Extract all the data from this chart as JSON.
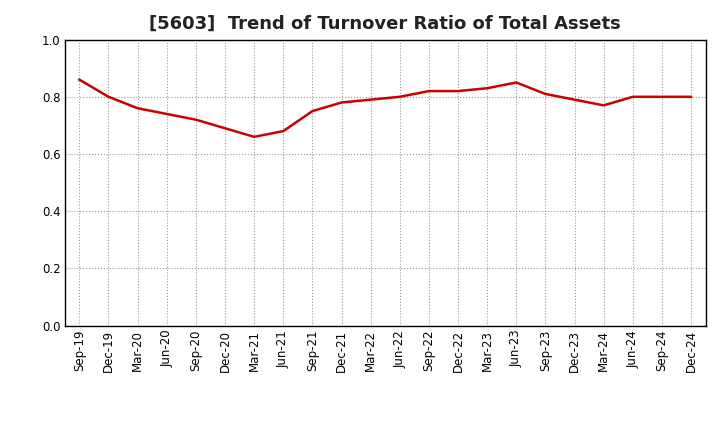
{
  "title": "[5603]  Trend of Turnover Ratio of Total Assets",
  "x_labels": [
    "Sep-19",
    "Dec-19",
    "Mar-20",
    "Jun-20",
    "Sep-20",
    "Dec-20",
    "Mar-21",
    "Jun-21",
    "Sep-21",
    "Dec-21",
    "Mar-22",
    "Jun-22",
    "Sep-22",
    "Dec-22",
    "Mar-23",
    "Jun-23",
    "Sep-23",
    "Dec-23",
    "Mar-24",
    "Jun-24",
    "Sep-24",
    "Dec-24"
  ],
  "y_values": [
    0.86,
    0.8,
    0.76,
    0.74,
    0.72,
    0.69,
    0.66,
    0.68,
    0.75,
    0.78,
    0.79,
    0.8,
    0.82,
    0.82,
    0.83,
    0.85,
    0.81,
    0.79,
    0.77,
    0.8,
    0.8,
    0.8
  ],
  "line_color": "#cc0000",
  "line_width": 1.8,
  "ylim": [
    0.0,
    1.0
  ],
  "yticks": [
    0.0,
    0.2,
    0.4,
    0.6,
    0.8,
    1.0
  ],
  "grid_color": "#999999",
  "bg_color": "#ffffff",
  "title_fontsize": 13,
  "tick_fontsize": 8.5,
  "title_color": "#222222"
}
